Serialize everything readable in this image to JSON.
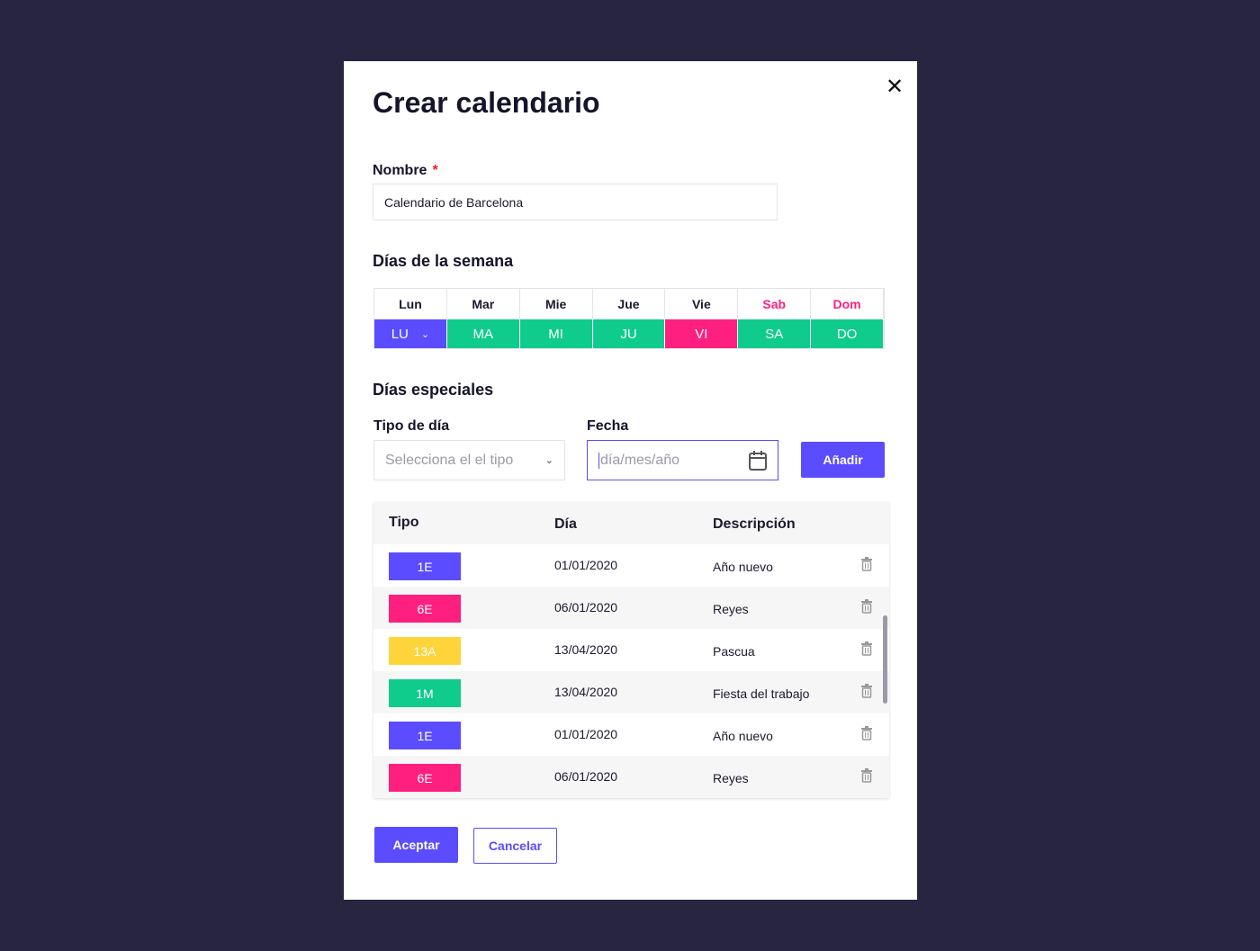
{
  "modal": {
    "title": "Crear calendario",
    "close_icon": "close-icon"
  },
  "nombre": {
    "label": "Nombre",
    "required": "*",
    "value": "Calendario de Barcelona"
  },
  "week": {
    "title": "Días de la semana",
    "days": [
      {
        "header": "Lun",
        "code": "LU",
        "color": "#5b4cff",
        "weekend": false,
        "dropdown": true
      },
      {
        "header": "Mar",
        "code": "MA",
        "color": "#0fcc8c",
        "weekend": false
      },
      {
        "header": "Mie",
        "code": "MI",
        "color": "#0fcc8c",
        "weekend": false
      },
      {
        "header": "Jue",
        "code": "JU",
        "color": "#0fcc8c",
        "weekend": false
      },
      {
        "header": "Vie",
        "code": "VI",
        "color": "#ff1f7e",
        "weekend": false
      },
      {
        "header": "Sab",
        "code": "SA",
        "color": "#0fcc8c",
        "weekend": true
      },
      {
        "header": "Dom",
        "code": "DO",
        "color": "#0fcc8c",
        "weekend": true
      }
    ]
  },
  "special": {
    "title": "Días especiales",
    "tipo_label": "Tipo de día",
    "tipo_placeholder": "Selecciona el el tipo",
    "fecha_label": "Fecha",
    "fecha_placeholder": "día/mes/año",
    "add_label": "Añadir"
  },
  "table": {
    "headers": [
      "Tipo",
      "Día",
      "Descripción"
    ],
    "rows": [
      {
        "tipo": "1E",
        "color": "#5b4cff",
        "dia": "01/01/2020",
        "desc": "Año nuevo"
      },
      {
        "tipo": "6E",
        "color": "#ff1f7e",
        "dia": "06/01/2020",
        "desc": "Reyes"
      },
      {
        "tipo": "13A",
        "color": "#ffd43b",
        "dia": "13/04/2020",
        "desc": "Pascua"
      },
      {
        "tipo": "1M",
        "color": "#0fcc8c",
        "dia": "13/04/2020",
        "desc": "Fiesta del trabajo"
      },
      {
        "tipo": "1E",
        "color": "#5b4cff",
        "dia": "01/01/2020",
        "desc": "Año nuevo"
      },
      {
        "tipo": "6E",
        "color": "#ff1f7e",
        "dia": "06/01/2020",
        "desc": "Reyes"
      }
    ]
  },
  "footer": {
    "accept": "Aceptar",
    "cancel": "Cancelar"
  },
  "colors": {
    "accent": "#5b4cff",
    "weekend_text": "#ff1f7e",
    "background": "#282541"
  }
}
